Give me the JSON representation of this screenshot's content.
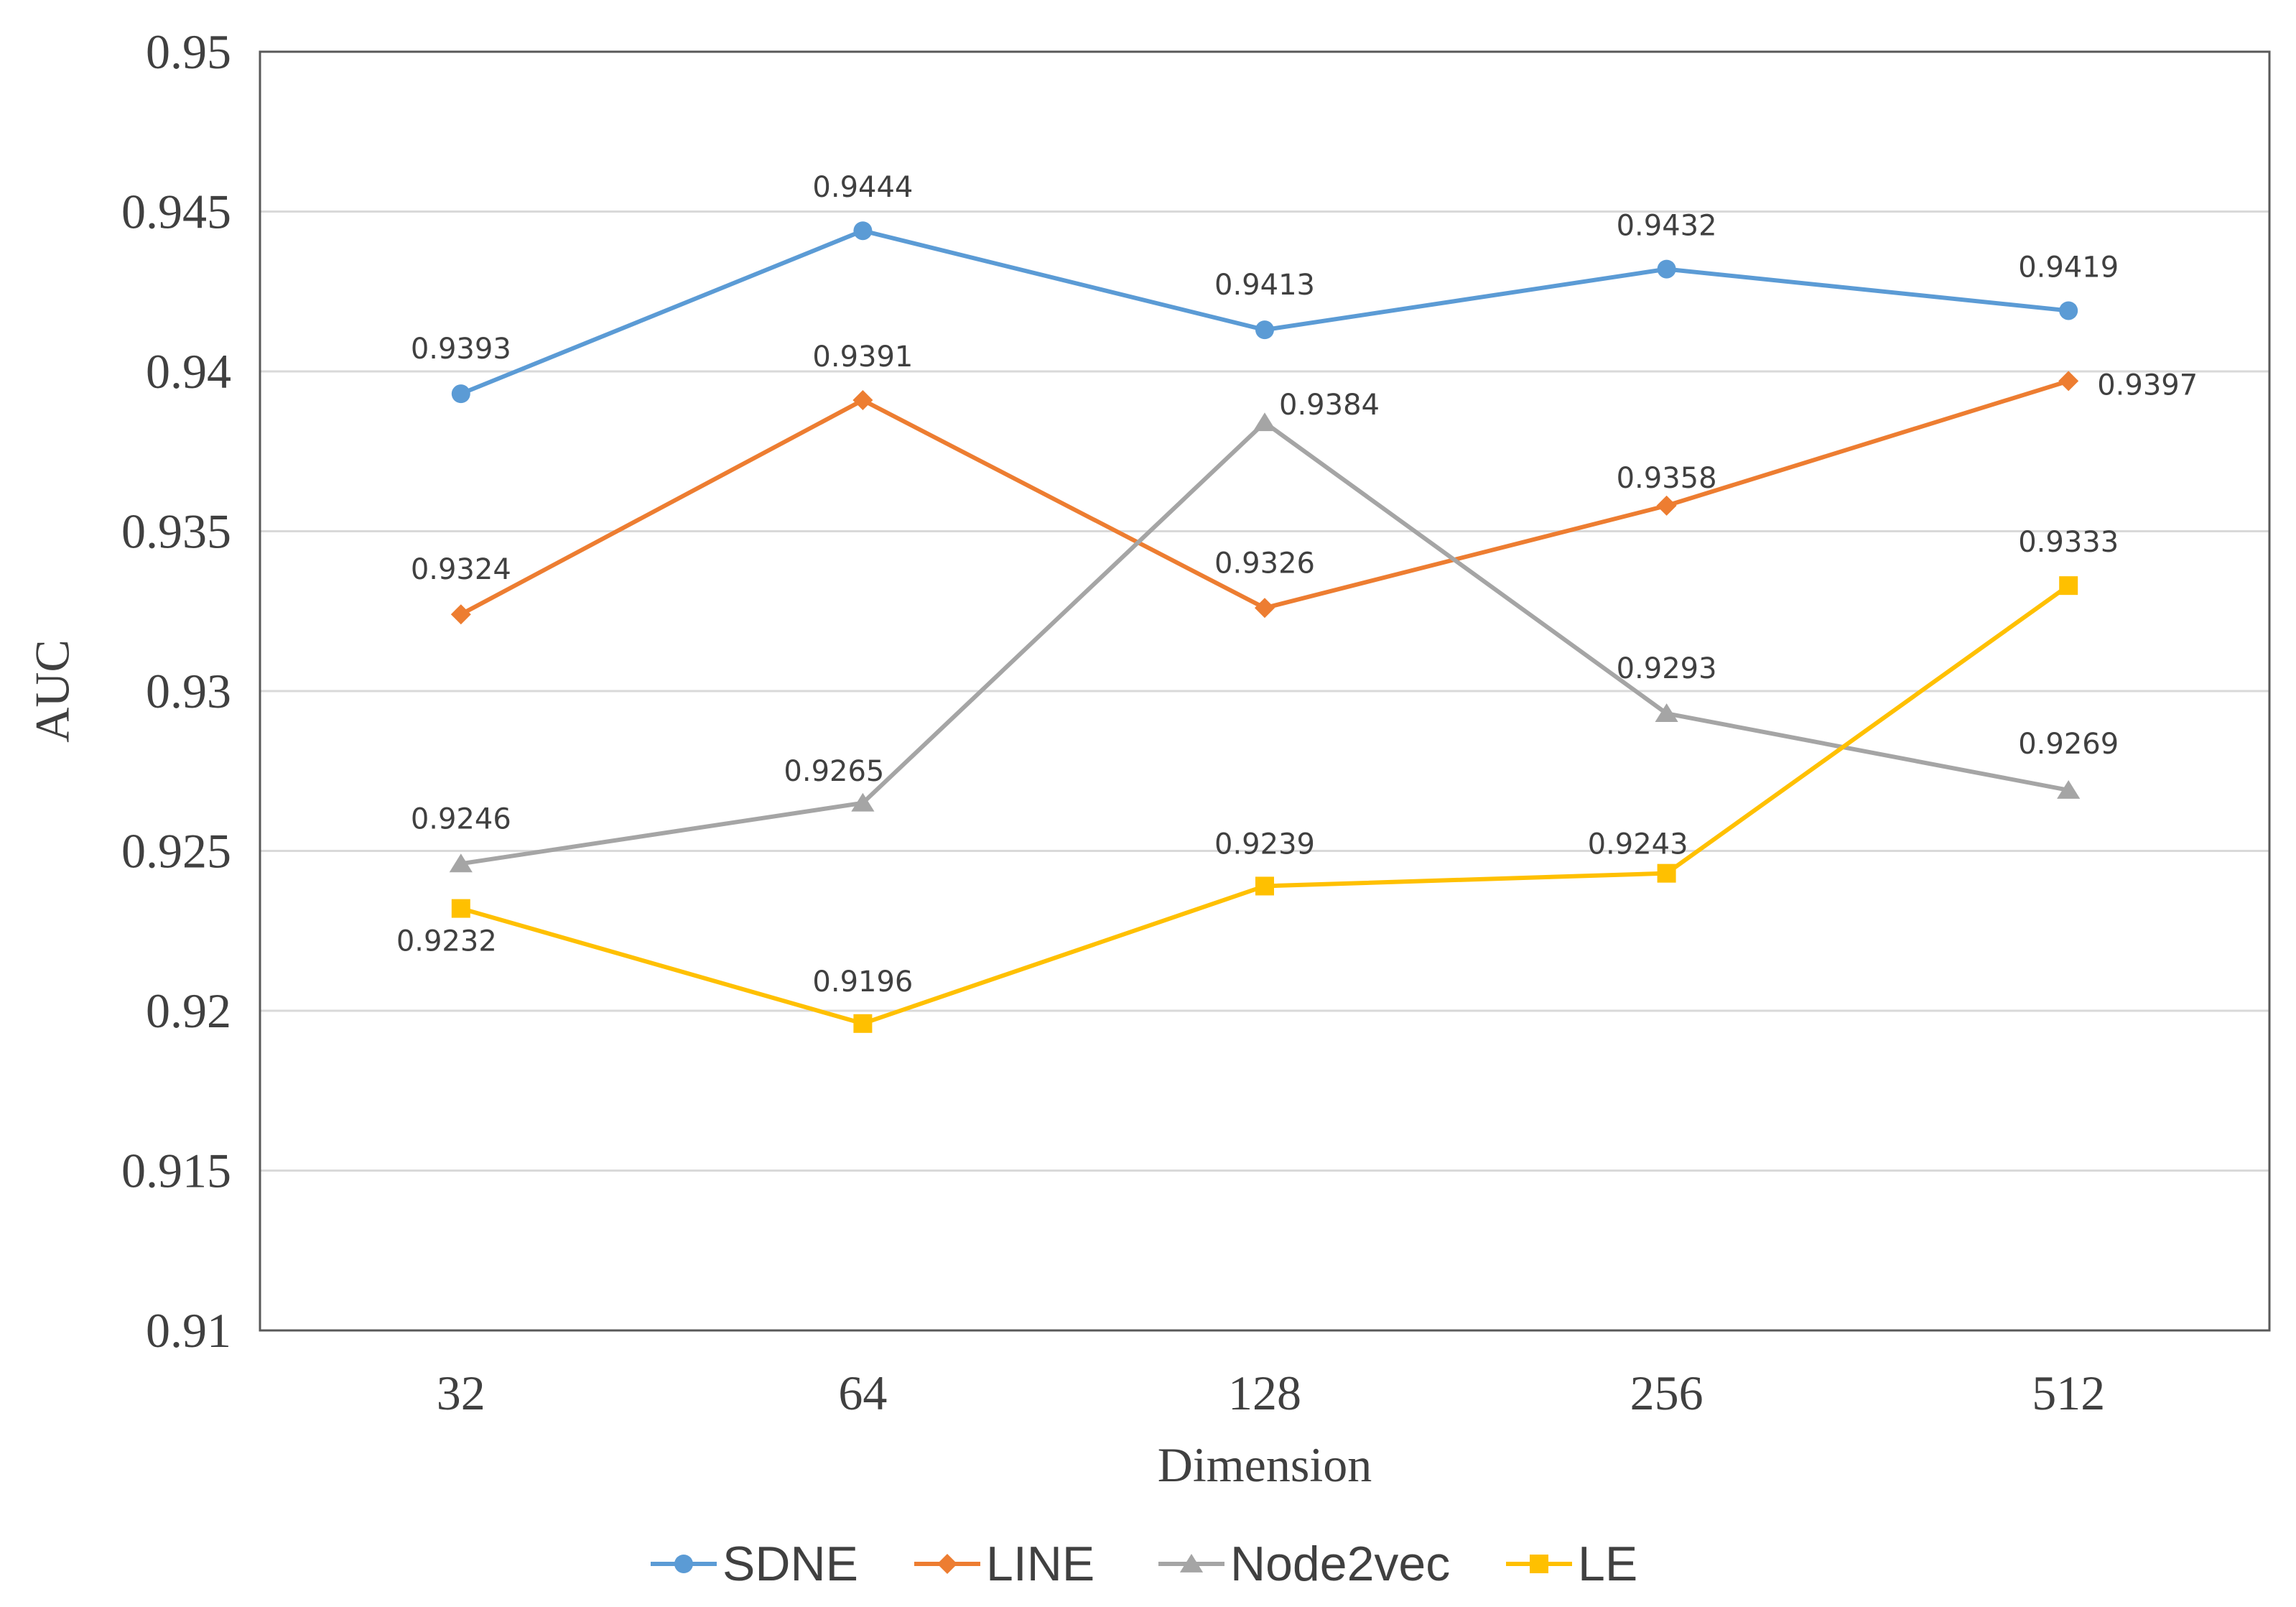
{
  "chart_data": {
    "type": "line",
    "title": "",
    "xlabel": "Dimension",
    "ylabel": "AUC",
    "categories": [
      "32",
      "64",
      "128",
      "256",
      "512"
    ],
    "ylim": [
      0.91,
      0.95
    ],
    "yticks": [
      0.91,
      0.915,
      0.92,
      0.925,
      0.93,
      0.935,
      0.94,
      0.945,
      0.95
    ],
    "ytick_labels": [
      "0.91",
      "0.915",
      "0.92",
      "0.925",
      "0.93",
      "0.935",
      "0.94",
      "0.945",
      "0.95"
    ],
    "grid": true,
    "legend_position": "bottom",
    "series": [
      {
        "name": "SDNE",
        "color": "#5B9BD5",
        "marker": "circle",
        "values": [
          0.9393,
          0.9444,
          0.9413,
          0.9432,
          0.9419
        ],
        "labels": [
          "0.9393",
          "0.9444",
          "0.9413",
          "0.9432",
          "0.9419"
        ]
      },
      {
        "name": "LINE",
        "color": "#ED7D31",
        "marker": "diamond",
        "values": [
          0.9324,
          0.9391,
          0.9326,
          0.9358,
          0.9397
        ],
        "labels": [
          "0.9324",
          "0.9391",
          "0.9326",
          "0.9358",
          "0.9397"
        ]
      },
      {
        "name": "Node2vec",
        "color": "#A5A5A5",
        "marker": "triangle",
        "values": [
          0.9246,
          0.9265,
          0.9384,
          0.9293,
          0.9269
        ],
        "labels": [
          "0.9246",
          "0.9265",
          "0.9384",
          "0.9293",
          "0.9269"
        ]
      },
      {
        "name": "LE",
        "color": "#FFC000",
        "marker": "square",
        "values": [
          0.9232,
          0.9196,
          0.9239,
          0.9243,
          0.9333
        ],
        "labels": [
          "0.9232",
          "0.9196",
          "0.9239",
          "0.9243",
          "0.9333"
        ]
      }
    ]
  }
}
